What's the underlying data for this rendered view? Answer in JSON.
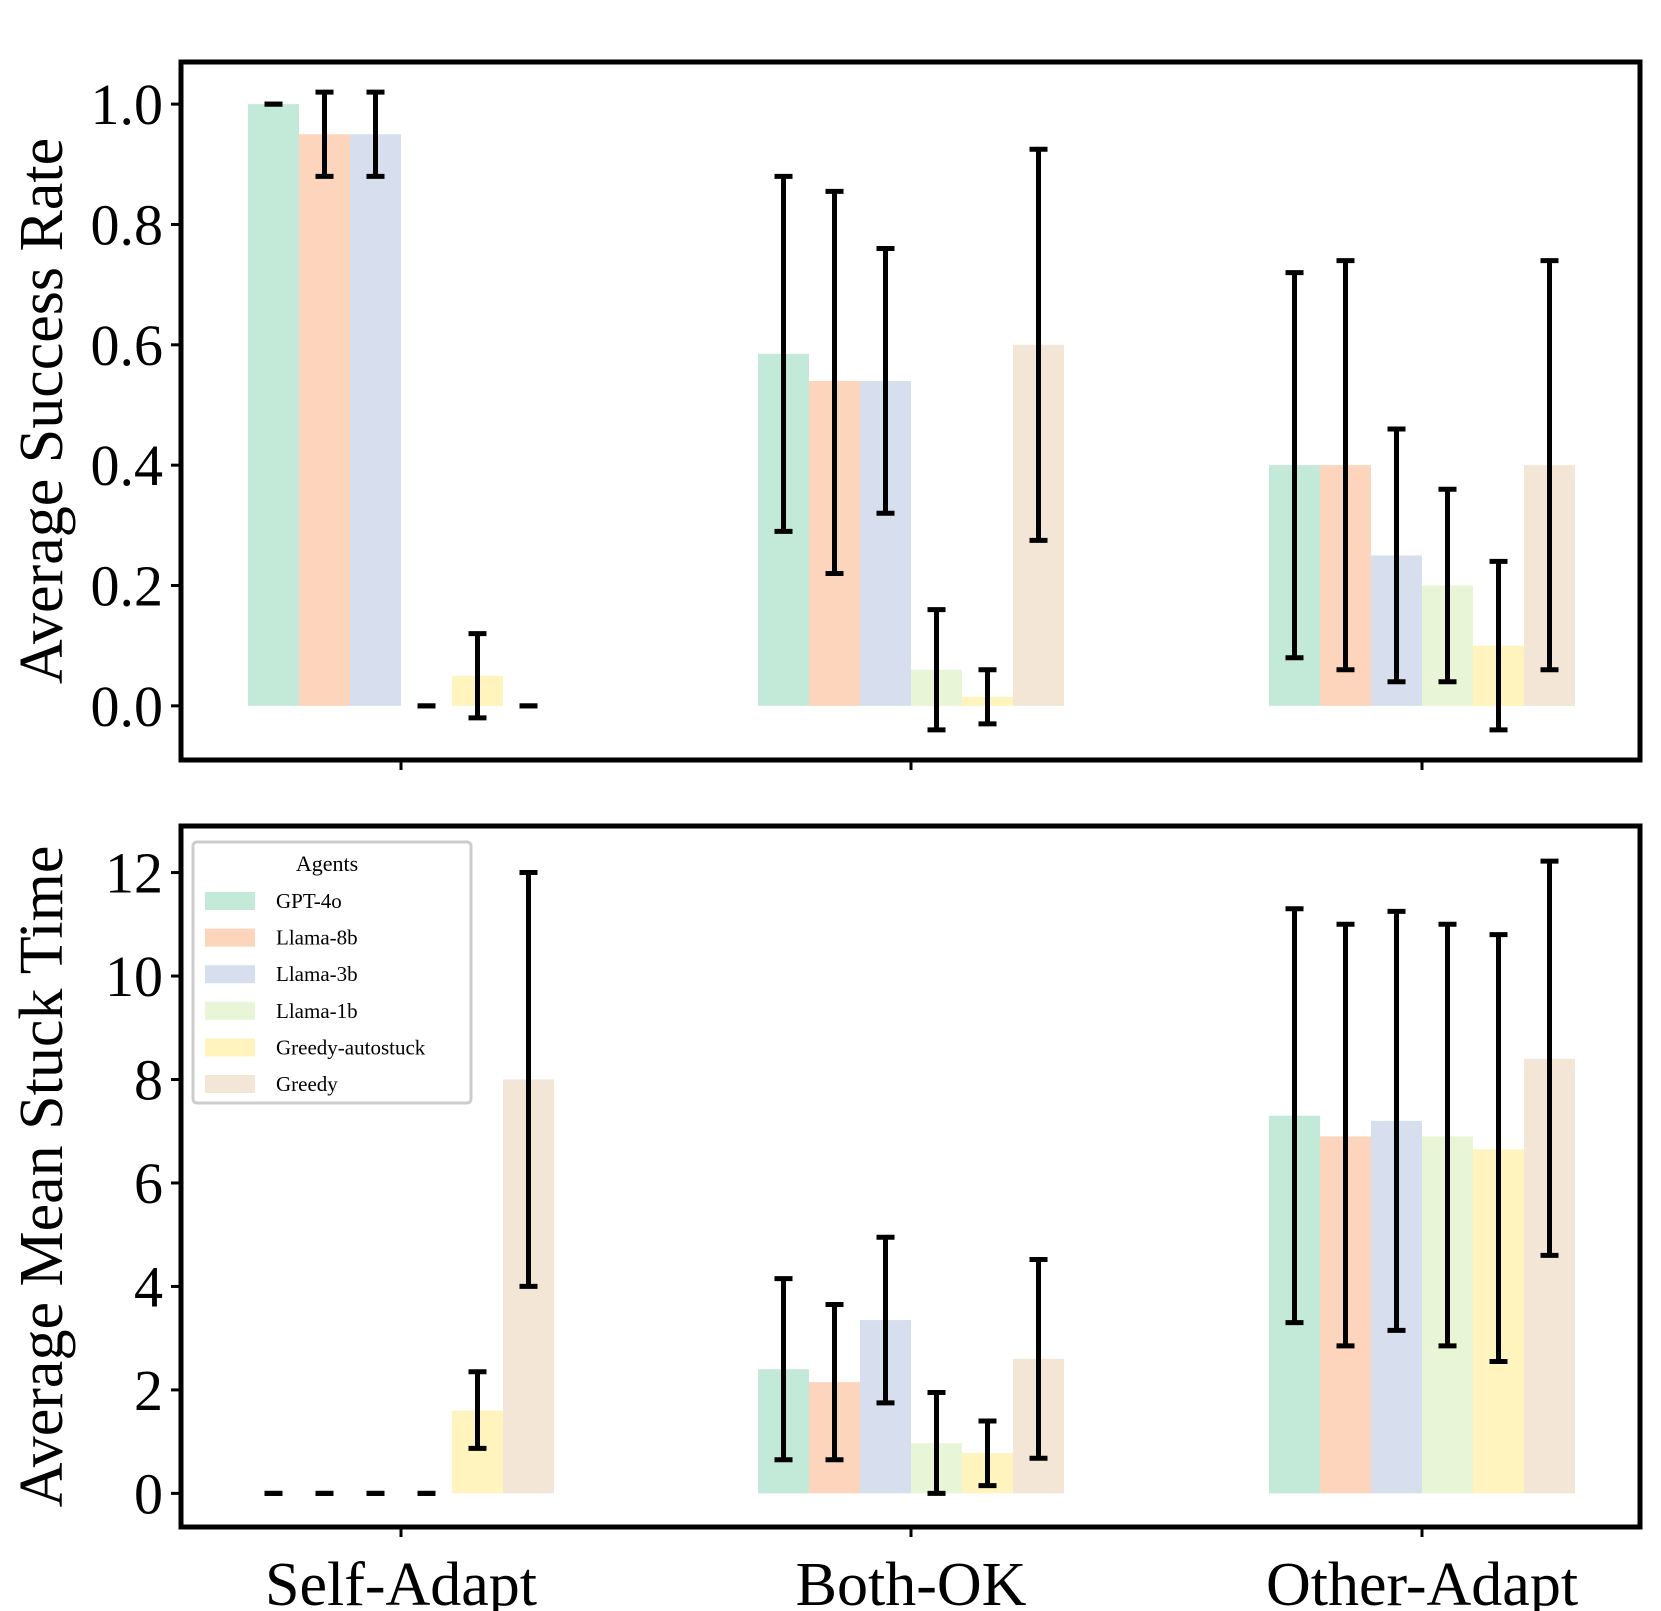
{
  "legend": {
    "title": "Agents",
    "entries": [
      "GPT-4o",
      "Llama-8b",
      "Llama-3b",
      "Llama-1b",
      "Greedy-autostuck",
      "Greedy"
    ]
  },
  "colors": {
    "GPT-4o": "#c3e9d8",
    "Llama-8b": "#fdd4bc",
    "Llama-3b": "#d7deee",
    "Llama-1b": "#e8f5d6",
    "Greedy-autostuck": "#fff4bd",
    "Greedy": "#f3e6d6"
  },
  "chart_data": [
    {
      "type": "bar",
      "ylabel": "Average Success Rate",
      "xlabel": "",
      "categories": [
        "Self-Adapt",
        "Both-OK",
        "Other-Adapt"
      ],
      "ylim": [
        -0.09,
        1.07
      ],
      "yticks": [
        0.0,
        0.2,
        0.4,
        0.6,
        0.8,
        1.0
      ],
      "ytick_labels": [
        "0.0",
        "0.2",
        "0.4",
        "0.6",
        "0.8",
        "1.0"
      ],
      "show_xtick_labels": false,
      "grid": false,
      "series": [
        {
          "name": "GPT-4o",
          "values": [
            1.0,
            0.585,
            0.4
          ],
          "err_low": [
            1.0,
            0.29,
            0.08
          ],
          "err_high": [
            1.0,
            0.88,
            0.72
          ]
        },
        {
          "name": "Llama-8b",
          "values": [
            0.95,
            0.54,
            0.4
          ],
          "err_low": [
            0.88,
            0.22,
            0.06
          ],
          "err_high": [
            1.02,
            0.855,
            0.74
          ]
        },
        {
          "name": "Llama-3b",
          "values": [
            0.95,
            0.54,
            0.25
          ],
          "err_low": [
            0.88,
            0.32,
            0.04
          ],
          "err_high": [
            1.02,
            0.76,
            0.46
          ]
        },
        {
          "name": "Llama-1b",
          "values": [
            0.0,
            0.06,
            0.2
          ],
          "err_low": [
            0.0,
            -0.04,
            0.04
          ],
          "err_high": [
            0.0,
            0.16,
            0.36
          ]
        },
        {
          "name": "Greedy-autostuck",
          "values": [
            0.05,
            0.015,
            0.1
          ],
          "err_low": [
            -0.02,
            -0.03,
            -0.04
          ],
          "err_high": [
            0.12,
            0.06,
            0.24
          ]
        },
        {
          "name": "Greedy",
          "values": [
            0.0,
            0.6,
            0.4
          ],
          "err_low": [
            0.0,
            0.275,
            0.06
          ],
          "err_high": [
            0.0,
            0.925,
            0.74
          ]
        }
      ]
    },
    {
      "type": "bar",
      "ylabel": "Average Mean Stuck Time",
      "xlabel": "",
      "categories": [
        "Self-Adapt",
        "Both-OK",
        "Other-Adapt"
      ],
      "ylim": [
        -0.65,
        12.9
      ],
      "yticks": [
        0,
        2,
        4,
        6,
        8,
        10,
        12
      ],
      "ytick_labels": [
        "0",
        "2",
        "4",
        "6",
        "8",
        "10",
        "12"
      ],
      "show_xtick_labels": true,
      "grid": false,
      "legend_position": "upper-left",
      "series": [
        {
          "name": "GPT-4o",
          "values": [
            0.0,
            2.4,
            7.3
          ],
          "err_low": [
            0.0,
            0.65,
            3.3
          ],
          "err_high": [
            0.0,
            4.15,
            11.3
          ]
        },
        {
          "name": "Llama-8b",
          "values": [
            0.0,
            2.15,
            6.9
          ],
          "err_low": [
            0.0,
            0.65,
            2.85
          ],
          "err_high": [
            0.0,
            3.65,
            11.0
          ]
        },
        {
          "name": "Llama-3b",
          "values": [
            0.0,
            3.35,
            7.2
          ],
          "err_low": [
            0.0,
            1.75,
            3.15
          ],
          "err_high": [
            0.0,
            4.95,
            11.25
          ]
        },
        {
          "name": "Llama-1b",
          "values": [
            0.0,
            0.97,
            6.9
          ],
          "err_low": [
            0.0,
            0.0,
            2.85
          ],
          "err_high": [
            0.0,
            1.95,
            11.0
          ]
        },
        {
          "name": "Greedy-autostuck",
          "values": [
            1.6,
            0.78,
            6.65
          ],
          "err_low": [
            0.87,
            0.15,
            2.55
          ],
          "err_high": [
            2.35,
            1.4,
            10.8
          ]
        },
        {
          "name": "Greedy",
          "values": [
            8.0,
            2.6,
            8.4
          ],
          "err_low": [
            4.0,
            0.68,
            4.6
          ],
          "err_high": [
            12.0,
            4.52,
            12.22
          ]
        }
      ]
    }
  ]
}
